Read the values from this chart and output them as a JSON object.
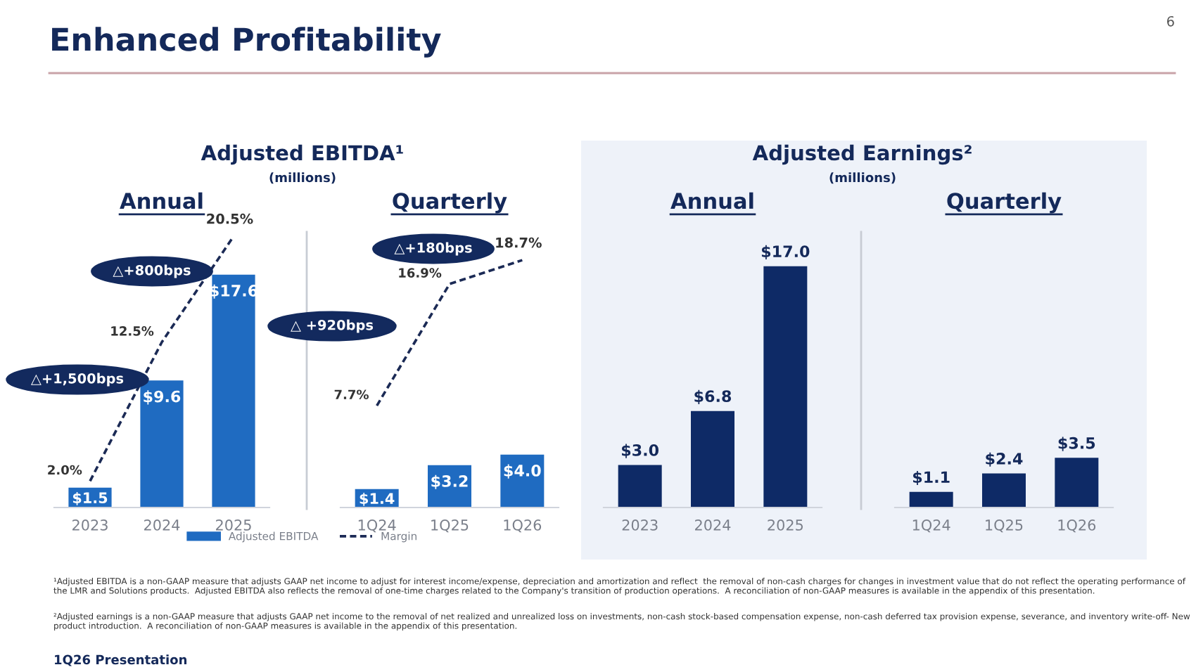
{
  "chart_data": [
    {
      "type": "other",
      "title": "Enhanced Profitability",
      "annotations": [
        "6",
        "¹Adjusted EBITDA is a non-GAAP measure that adjusts GAAP net income to adjust for interest income/expense, depreciation and amortization and reflect  the removal of non-cash charges for changes in investment value that do not reflect the operating performance of the LMR and Solutions products.  Adjusted EBITDA also reflects the removal of one-time charges related to the Company's transition of production operations.  A reconciliation of non-GAAP measures is available in the appendix of this presentation.",
        "²Adjusted earnings is a non-GAAP measure that adjusts GAAP net income to the removal of net realized and unrealized loss on investments, non-cash stock-based compensation expense, non-cash deferred tax provision expense, severance, and inventory write-off- New product introduction.  A reconciliation of non-GAAP measures is available in the appendix of this presentation.",
        "1Q26 Presentation"
      ]
    },
    {
      "type": "bar",
      "title": "Annual",
      "categories": [
        "2023",
        "2024",
        "2025"
      ],
      "tick_labels": "x",
      "legend": "bottom",
      "annotations": [
        "Adjusted EBITDA¹",
        "(millions)",
        "△+1,500bps",
        "△+800bps"
      ],
      "series": [
        {
          "name": "Adjusted EBITDA",
          "type": "bar",
          "color": "#1f6bc1",
          "values": [
            1.5,
            9.6,
            17.6
          ],
          "value_labels": [
            "$1.5",
            "$9.6",
            "$17.6"
          ]
        },
        {
          "name": "Margin",
          "type": "line",
          "line_style": "dashed",
          "color": "#1b2a55",
          "values": [
            2.0,
            12.5,
            20.5
          ],
          "value_labels": [
            "2.0%",
            "12.5%",
            "20.5%"
          ]
        }
      ]
    },
    {
      "type": "bar",
      "title": "Quarterly",
      "categories": [
        "1Q24",
        "1Q25",
        "1Q26"
      ],
      "tick_labels": "x",
      "annotations": [
        "△ +920bps",
        "△+180bps"
      ],
      "series": [
        {
          "type": "bar",
          "color": "#1f6bc1",
          "values": [
            1.4,
            3.2,
            4.0
          ],
          "value_labels": [
            "$1.4",
            "$3.2",
            "$4.0"
          ]
        },
        {
          "type": "line",
          "line_style": "dashed",
          "color": "#1b2a55",
          "values": [
            7.7,
            16.9,
            18.7
          ],
          "value_labels": [
            "7.7%",
            "16.9%",
            "18.7%"
          ]
        }
      ]
    },
    {
      "type": "bar",
      "title": "Annual",
      "categories": [
        "2023",
        "2024",
        "2025"
      ],
      "tick_labels": "x",
      "annotations": [
        "Adjusted Earnings²",
        "(millions)"
      ],
      "series": [
        {
          "type": "bar",
          "color": "#0e2a66",
          "values": [
            3.0,
            6.8,
            17.0
          ],
          "value_labels": [
            "$3.0",
            "$6.8",
            "$17.0"
          ]
        }
      ]
    },
    {
      "type": "bar",
      "title": "Quarterly",
      "categories": [
        "1Q24",
        "1Q25",
        "1Q26"
      ],
      "tick_labels": "x",
      "series": [
        {
          "type": "bar",
          "color": "#0e2a66",
          "values": [
            1.1,
            2.4,
            3.5
          ],
          "value_labels": [
            "$1.1",
            "$2.4",
            "$3.5"
          ]
        }
      ]
    }
  ]
}
